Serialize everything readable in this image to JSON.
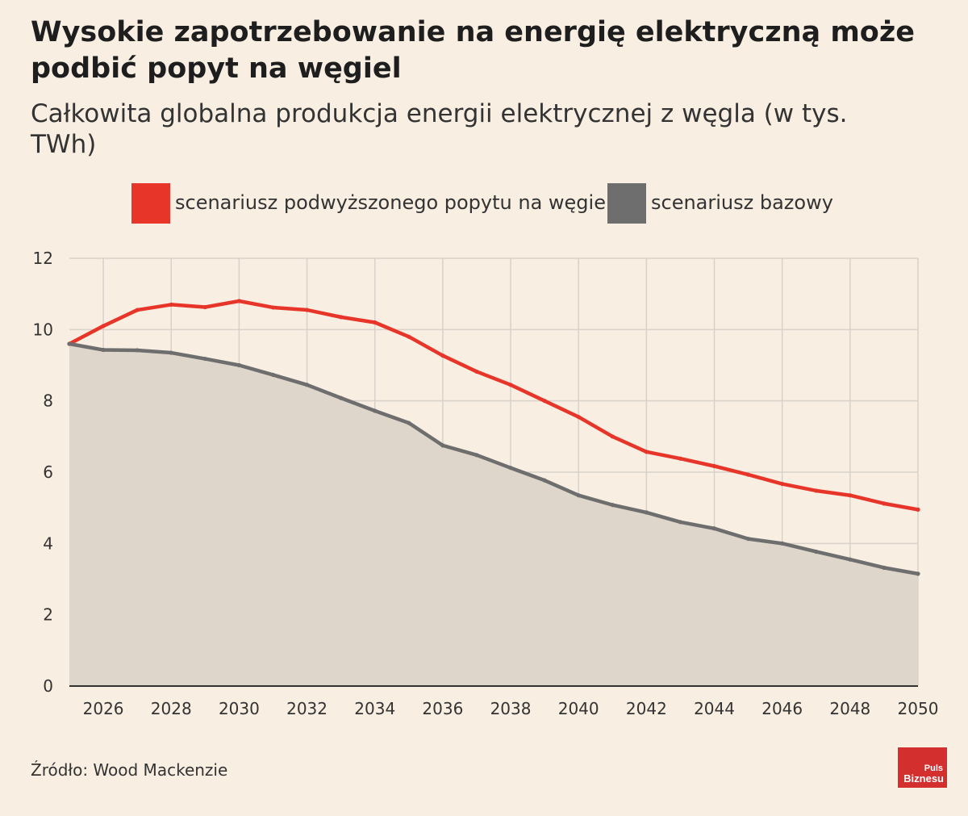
{
  "title": "Wysokie zapotrzebowanie na energię elektryczną może podbić popyt na węgiel",
  "subtitle": "Całkowita globalna produkcja energii elektrycznej z węgla (w tys. TWh)",
  "source": "Źródło: Wood Mackenzie",
  "logo": {
    "line1": "Puls",
    "line2": "Biznesu"
  },
  "colors": {
    "background": "#f8eee2",
    "high_scenario": "#e8352a",
    "base_scenario": "#6e6e6e",
    "base_area": "#ded6ca",
    "grid": "#d8d2ca",
    "logo": "#d32f2f"
  },
  "chart_data": {
    "type": "area",
    "title": "Całkowita globalna produkcja energii elektrycznej z węgla (w tys. TWh)",
    "xlabel": "",
    "ylabel": "",
    "x": [
      2025,
      2026,
      2027,
      2028,
      2029,
      2030,
      2031,
      2032,
      2033,
      2034,
      2035,
      2036,
      2037,
      2038,
      2039,
      2040,
      2041,
      2042,
      2043,
      2044,
      2045,
      2046,
      2047,
      2048,
      2049,
      2050
    ],
    "xlim": [
      2025,
      2050
    ],
    "ylim": [
      0,
      12
    ],
    "x_ticks": [
      "2026",
      "2028",
      "2030",
      "2032",
      "2034",
      "2036",
      "2038",
      "2040",
      "2042",
      "2044",
      "2046",
      "2048",
      "2050"
    ],
    "y_ticks": [
      "0",
      "2",
      "4",
      "6",
      "8",
      "10",
      "12"
    ],
    "grid": true,
    "legend_position": "top",
    "series": [
      {
        "name": "scenariusz podwyższonego popytu na węgiel",
        "type": "line",
        "color": "#e8352a",
        "values": [
          9.6,
          10.1,
          10.55,
          10.7,
          10.63,
          10.8,
          10.62,
          10.55,
          10.35,
          10.2,
          9.8,
          9.27,
          8.82,
          8.45,
          8.0,
          7.55,
          7.0,
          6.57,
          6.38,
          6.17,
          5.93,
          5.67,
          5.48,
          5.35,
          5.12,
          4.95
        ]
      },
      {
        "name": "scenariusz bazowy",
        "type": "area",
        "color": "#6e6e6e",
        "values": [
          9.6,
          9.43,
          9.42,
          9.35,
          9.18,
          9.0,
          8.73,
          8.45,
          8.08,
          7.72,
          7.38,
          6.75,
          6.48,
          6.12,
          5.77,
          5.35,
          5.08,
          4.87,
          4.6,
          4.42,
          4.13,
          4.0,
          3.77,
          3.55,
          3.32,
          3.15
        ]
      }
    ]
  }
}
